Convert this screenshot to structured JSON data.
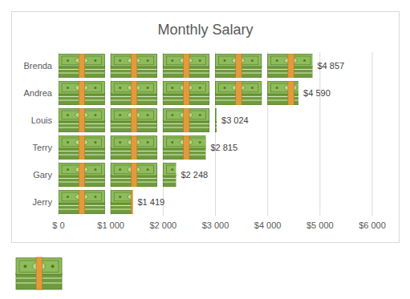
{
  "chart_data": {
    "type": "bar",
    "title": "Monthly Salary",
    "orientation": "horizontal",
    "categories": [
      "Brenda",
      "Andrea",
      "Louis",
      "Terry",
      "Gary",
      "Jerry"
    ],
    "values": [
      4857,
      4590,
      3024,
      2815,
      2248,
      1419
    ],
    "value_labels": [
      "$4 857",
      "$4 590",
      "$3 024",
      "$2 815",
      "$2 248",
      "$1 419"
    ],
    "data_labels": true,
    "xlim": [
      0,
      6000
    ],
    "xticks": [
      {
        "value": 0,
        "label": "$ 0"
      },
      {
        "value": 1000,
        "label": "$1 000"
      },
      {
        "value": 2000,
        "label": "$2 000"
      },
      {
        "value": 3000,
        "label": "$3 000"
      },
      {
        "value": 4000,
        "label": "$4 000"
      },
      {
        "value": 5000,
        "label": "$5 000"
      },
      {
        "value": 6000,
        "label": "$6 000"
      }
    ],
    "grid": true,
    "color": "#8fbc5a"
  }
}
